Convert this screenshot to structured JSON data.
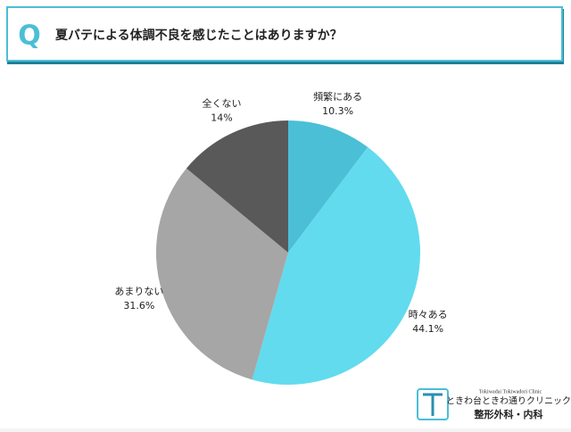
{
  "header": {
    "badge": "Q",
    "title": "夏バテによる体調不良を感じたことはありますか？"
  },
  "chart_data": {
    "type": "pie",
    "categories": [
      "頻繁にある",
      "時々ある",
      "あまりない",
      "全くない"
    ],
    "values": [
      10.3,
      44.1,
      31.6,
      14
    ],
    "value_labels": [
      "10.3%",
      "44.1%",
      "31.6%",
      "14%"
    ],
    "colors": [
      "#4bbfd6",
      "#62dbee",
      "#a6a6a6",
      "#595959"
    ]
  },
  "logo": {
    "english": "Tokiwadai Tokiwadori Clinic",
    "name": "ときわ台ときわ通りクリニック",
    "departments": "整形外科・内科"
  }
}
